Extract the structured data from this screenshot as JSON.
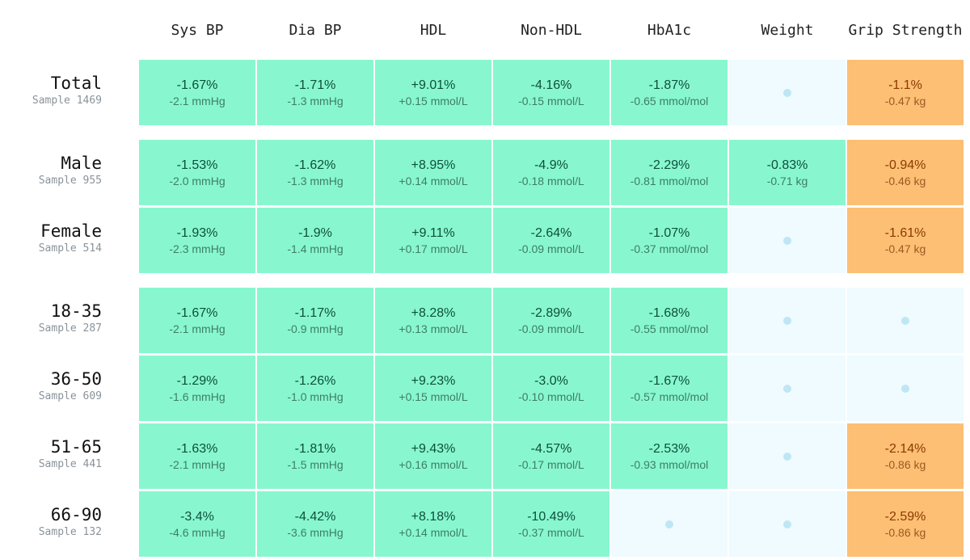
{
  "colors": {
    "significant_improvement": "#88f7cf",
    "significant_worsening": "#fcbf74",
    "not_significant": "#effbfe",
    "dot": "#bfe6f4"
  },
  "chart_data": {
    "type": "heatmap",
    "columns": [
      "Sys BP",
      "Dia BP",
      "HDL",
      "Non-HDL",
      "HbA1c",
      "Weight",
      "Grip Strength"
    ],
    "groups": [
      [
        "Total"
      ],
      [
        "Male",
        "Female"
      ],
      [
        "18-35",
        "36-50",
        "51-65",
        "66-90"
      ]
    ],
    "rows": [
      {
        "label": "Total",
        "sample": "Sample 1469",
        "cells": [
          {
            "status": "green",
            "pct": "-1.67%",
            "abs": "-2.1 mmHg"
          },
          {
            "status": "green",
            "pct": "-1.71%",
            "abs": "-1.3 mmHg"
          },
          {
            "status": "green",
            "pct": "+9.01%",
            "abs": "+0.15 mmol/L"
          },
          {
            "status": "green",
            "pct": "-4.16%",
            "abs": "-0.15 mmol/L"
          },
          {
            "status": "green",
            "pct": "-1.87%",
            "abs": "-0.65 mmol/mol"
          },
          {
            "status": "ns"
          },
          {
            "status": "orange",
            "pct": "-1.1%",
            "abs": "-0.47 kg"
          }
        ]
      },
      {
        "label": "Male",
        "sample": "Sample 955",
        "cells": [
          {
            "status": "green",
            "pct": "-1.53%",
            "abs": "-2.0 mmHg"
          },
          {
            "status": "green",
            "pct": "-1.62%",
            "abs": "-1.3 mmHg"
          },
          {
            "status": "green",
            "pct": "+8.95%",
            "abs": "+0.14 mmol/L"
          },
          {
            "status": "green",
            "pct": "-4.9%",
            "abs": "-0.18 mmol/L"
          },
          {
            "status": "green",
            "pct": "-2.29%",
            "abs": "-0.81 mmol/mol"
          },
          {
            "status": "green",
            "pct": "-0.83%",
            "abs": "-0.71 kg"
          },
          {
            "status": "orange",
            "pct": "-0.94%",
            "abs": "-0.46 kg"
          }
        ]
      },
      {
        "label": "Female",
        "sample": "Sample 514",
        "cells": [
          {
            "status": "green",
            "pct": "-1.93%",
            "abs": "-2.3 mmHg"
          },
          {
            "status": "green",
            "pct": "-1.9%",
            "abs": "-1.4 mmHg"
          },
          {
            "status": "green",
            "pct": "+9.11%",
            "abs": "+0.17 mmol/L"
          },
          {
            "status": "green",
            "pct": "-2.64%",
            "abs": "-0.09 mmol/L"
          },
          {
            "status": "green",
            "pct": "-1.07%",
            "abs": "-0.37 mmol/mol"
          },
          {
            "status": "ns"
          },
          {
            "status": "orange",
            "pct": "-1.61%",
            "abs": "-0.47 kg"
          }
        ]
      },
      {
        "label": "18-35",
        "sample": "Sample 287",
        "cells": [
          {
            "status": "green",
            "pct": "-1.67%",
            "abs": "-2.1 mmHg"
          },
          {
            "status": "green",
            "pct": "-1.17%",
            "abs": "-0.9 mmHg"
          },
          {
            "status": "green",
            "pct": "+8.28%",
            "abs": "+0.13 mmol/L"
          },
          {
            "status": "green",
            "pct": "-2.89%",
            "abs": "-0.09 mmol/L"
          },
          {
            "status": "green",
            "pct": "-1.68%",
            "abs": "-0.55 mmol/mol"
          },
          {
            "status": "ns"
          },
          {
            "status": "ns"
          }
        ]
      },
      {
        "label": "36-50",
        "sample": "Sample 609",
        "cells": [
          {
            "status": "green",
            "pct": "-1.29%",
            "abs": "-1.6 mmHg"
          },
          {
            "status": "green",
            "pct": "-1.26%",
            "abs": "-1.0 mmHg"
          },
          {
            "status": "green",
            "pct": "+9.23%",
            "abs": "+0.15 mmol/L"
          },
          {
            "status": "green",
            "pct": "-3.0%",
            "abs": "-0.10 mmol/L"
          },
          {
            "status": "green",
            "pct": "-1.67%",
            "abs": "-0.57 mmol/mol"
          },
          {
            "status": "ns"
          },
          {
            "status": "ns"
          }
        ]
      },
      {
        "label": "51-65",
        "sample": "Sample 441",
        "cells": [
          {
            "status": "green",
            "pct": "-1.63%",
            "abs": "-2.1 mmHg"
          },
          {
            "status": "green",
            "pct": "-1.81%",
            "abs": "-1.5 mmHg"
          },
          {
            "status": "green",
            "pct": "+9.43%",
            "abs": "+0.16 mmol/L"
          },
          {
            "status": "green",
            "pct": "-4.57%",
            "abs": "-0.17 mmol/L"
          },
          {
            "status": "green",
            "pct": "-2.53%",
            "abs": "-0.93 mmol/mol"
          },
          {
            "status": "ns"
          },
          {
            "status": "orange",
            "pct": "-2.14%",
            "abs": "-0.86 kg"
          }
        ]
      },
      {
        "label": "66-90",
        "sample": "Sample 132",
        "cells": [
          {
            "status": "green",
            "pct": "-3.4%",
            "abs": "-4.6 mmHg"
          },
          {
            "status": "green",
            "pct": "-4.42%",
            "abs": "-3.6 mmHg"
          },
          {
            "status": "green",
            "pct": "+8.18%",
            "abs": "+0.14 mmol/L"
          },
          {
            "status": "green",
            "pct": "-10.49%",
            "abs": "-0.37 mmol/L"
          },
          {
            "status": "ns"
          },
          {
            "status": "ns"
          },
          {
            "status": "orange",
            "pct": "-2.59%",
            "abs": "-0.86 kg"
          }
        ]
      }
    ]
  }
}
